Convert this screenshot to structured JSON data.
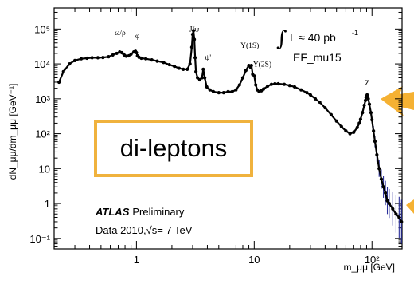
{
  "chart_data": {
    "type": "scatter",
    "title": "",
    "ylabel": "dN_μμ/dm_μμ [GeV⁻¹]",
    "xlabel": "m_μμ [GeV]",
    "xscale": "log",
    "yscale": "log",
    "xlim": [
      0.2,
      180
    ],
    "ylim": [
      0.05,
      400000
    ],
    "x_ticks": [
      {
        "value": 1,
        "label": "1"
      },
      {
        "value": 10,
        "label": "10"
      },
      {
        "value": 100,
        "label": "10²"
      }
    ],
    "y_ticks": [
      {
        "value": 0.1,
        "label": "10⁻¹"
      },
      {
        "value": 1,
        "label": "1"
      },
      {
        "value": 10,
        "label": "10"
      },
      {
        "value": 100,
        "label": "10²"
      },
      {
        "value": 1000,
        "label": "10³"
      },
      {
        "value": 10000,
        "label": "10⁴"
      },
      {
        "value": 100000,
        "label": "10⁵"
      }
    ],
    "grid": false,
    "series": [
      {
        "color": "#2a2f9a",
        "x": [
          0.22,
          0.24,
          0.27,
          0.3,
          0.34,
          0.38,
          0.42,
          0.47,
          0.52,
          0.58,
          0.63,
          0.68,
          0.72,
          0.75,
          0.78,
          0.8,
          0.82,
          0.86,
          0.9,
          0.95,
          0.98,
          1.0,
          1.02,
          1.05,
          1.1,
          1.2,
          1.35,
          1.5,
          1.7,
          1.9,
          2.1,
          2.3,
          2.5,
          2.7,
          2.85,
          2.95,
          3.0,
          3.05,
          3.1,
          3.15,
          3.2,
          3.3,
          3.45,
          3.6,
          3.69,
          3.8,
          3.95,
          4.2,
          4.5,
          5.0,
          5.5,
          6.0,
          6.5,
          7.0,
          7.5,
          8.0,
          8.5,
          9.0,
          9.3,
          9.46,
          9.7,
          10.02,
          10.3,
          10.6,
          11.0,
          11.5,
          12,
          13,
          14,
          15,
          16,
          18,
          20,
          22,
          25,
          28,
          30,
          33,
          36,
          40,
          45,
          50,
          55,
          60,
          65,
          70,
          75,
          78,
          80,
          83,
          86,
          88,
          89,
          90,
          91,
          92,
          93,
          95,
          98,
          100,
          103,
          106,
          110,
          115,
          120,
          125,
          130,
          135,
          140,
          150,
          160,
          170,
          178
        ],
        "y": [
          3000,
          6000,
          10000,
          12500,
          14000,
          14500,
          15000,
          15000,
          15200,
          16000,
          18000,
          20000,
          22000,
          21000,
          19000,
          17000,
          16500,
          17000,
          19000,
          22000,
          23000,
          21000,
          17000,
          15500,
          14500,
          14000,
          13000,
          12000,
          11000,
          9500,
          8500,
          7500,
          7000,
          7000,
          10000,
          30000,
          70000,
          90000,
          50000,
          15000,
          6000,
          4000,
          3500,
          4000,
          7000,
          4000,
          2200,
          1800,
          1600,
          1500,
          1500,
          1600,
          1600,
          1800,
          2500,
          4000,
          6500,
          9000,
          8000,
          9000,
          5000,
          4500,
          2500,
          1800,
          1600,
          1700,
          1900,
          2300,
          2600,
          2700,
          2700,
          2600,
          2400,
          2200,
          1800,
          1500,
          1300,
          1000,
          800,
          550,
          350,
          230,
          160,
          120,
          100,
          110,
          150,
          200,
          260,
          400,
          650,
          900,
          1100,
          1200,
          1300,
          1200,
          1000,
          700,
          400,
          250,
          120,
          60,
          25,
          10,
          5,
          3,
          2,
          1.2,
          1,
          0.7,
          0.5,
          0.4,
          0.3
        ]
      }
    ],
    "annotations": [
      {
        "label": "ω/ρ",
        "x": 0.75
      },
      {
        "label": "φ",
        "x": 1.02
      },
      {
        "label": "J/ψ",
        "x": 3.1
      },
      {
        "label": "ψ'",
        "x": 3.69
      },
      {
        "label": "Υ(1S)",
        "x": 9.46
      },
      {
        "label": "Υ(2S)",
        "x": 10.02
      },
      {
        "label": "Z",
        "x": 91
      }
    ],
    "text_labels": {
      "lumi_integral": "∫",
      "lumi": "L ≈ 40 pb",
      "lumi_sup": "-1",
      "trigger": "EF_mu15",
      "experiment": "ATLAS",
      "status": "Preliminary",
      "data_line": "Data 2010,√s= 7 TeV"
    }
  },
  "callout": {
    "text": "di-leptons",
    "border_color": "#f0b23d"
  },
  "arrow_color": "#f5b133"
}
